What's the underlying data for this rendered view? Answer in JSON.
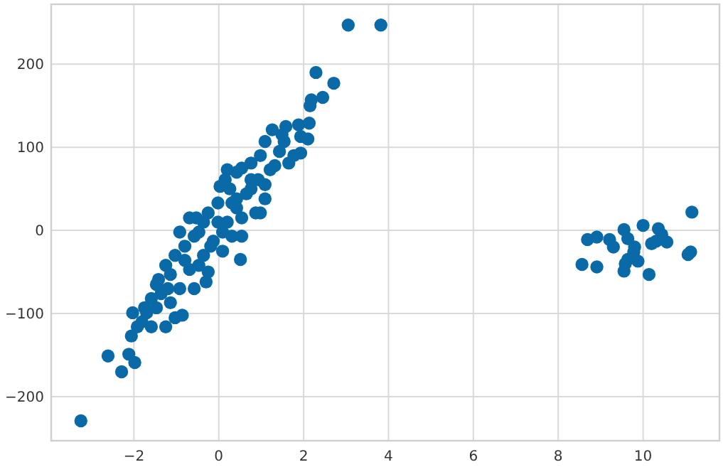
{
  "chart_data": {
    "type": "scatter",
    "color": "#0a6aa8",
    "marker": "circle",
    "grid": true,
    "xlim": [
      -3.95,
      11.8
    ],
    "ylim": [
      -253,
      272
    ],
    "xticks": [
      {
        "value": -2,
        "label": "−2"
      },
      0,
      2,
      4,
      6,
      8,
      10
    ],
    "yticks": [
      {
        "value": -200,
        "label": "−200"
      },
      {
        "value": -100,
        "label": "−100"
      },
      0,
      100,
      200
    ],
    "x": [
      -3.25,
      3.05,
      3.82,
      2.29,
      2.71,
      2.45,
      2.18,
      2.15,
      -2.61,
      -2.29,
      -2.12,
      -1.98,
      11.15,
      10.0,
      9.55,
      10.36,
      10.44,
      8.69,
      8.91,
      9.21,
      9.3,
      9.64,
      9.8,
      9.78,
      9.64,
      9.88,
      9.58,
      9.55,
      10.14,
      8.56,
      8.91,
      10.2,
      10.31,
      10.56,
      11.06,
      11.12,
      1.26,
      1.58,
      1.88,
      2.13,
      2.1,
      1.93,
      1.65,
      1.43,
      1.09,
      0.98,
      0.76,
      0.54,
      0.2,
      0.26,
      0.03,
      0.42,
      0.76,
      1.09,
      1.32,
      0.98,
      0.54,
      0.51,
      0.2,
      0.31,
      0.09,
      -0.13,
      -0.25,
      -0.53,
      -0.58,
      -0.36,
      -0.25,
      -0.69,
      -0.8,
      -0.92,
      -1.03,
      -1.14,
      -1.42,
      -1.36,
      -1.59,
      -0.92,
      -0.86,
      -1.25,
      -1.59,
      -1.81,
      -2.03,
      -2.06,
      -1.75,
      -1.14,
      -0.58,
      -0.47,
      -0.02,
      0.31,
      0.65,
      0.93,
      1.21,
      1.54,
      1.93,
      1.09,
      0.76,
      0.42,
      -0.02,
      -0.36,
      0.09,
      0.54,
      -0.69,
      -0.8,
      -1.25,
      -1.47,
      -1.7,
      -1.92,
      -0.19,
      -0.47,
      0.87,
      1.49,
      1.77,
      0.15,
      0.42,
      -0.3,
      -1.03,
      -1.47,
      -1.2
    ],
    "values": [
      -229,
      247,
      247,
      190,
      177,
      160,
      157,
      150,
      -151,
      -170,
      -149,
      -159,
      22,
      6,
      1,
      2,
      -5,
      -11,
      -8,
      -11,
      -20,
      -10,
      -20,
      -26,
      -35,
      -37,
      -40,
      -49,
      -53,
      -41,
      -44,
      -16,
      -13,
      -14,
      -29,
      -26,
      121,
      125,
      127,
      129,
      110,
      93,
      81,
      95,
      107,
      90,
      81,
      75,
      73,
      50,
      53,
      38,
      50,
      55,
      78,
      21,
      15,
      -35,
      10,
      -7,
      -25,
      -13,
      21,
      15,
      -7,
      -30,
      -50,
      -47,
      -19,
      -2,
      -30,
      -53,
      -59,
      -76,
      -82,
      -70,
      -102,
      -116,
      -116,
      -110,
      -99,
      -127,
      -93,
      -87,
      -70,
      -42,
      10,
      33,
      44,
      61,
      73,
      107,
      113,
      38,
      61,
      27,
      33,
      10,
      -2,
      -7,
      15,
      -36,
      -42,
      -65,
      -99,
      -116,
      -19,
      -2,
      21,
      115,
      90,
      61,
      70,
      -62,
      -105,
      -93,
      -70
    ]
  }
}
